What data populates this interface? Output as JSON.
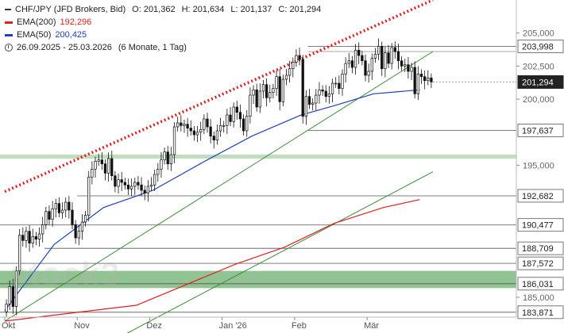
{
  "legend": {
    "symbol": "CHF/JPY (JFD Brokers, Bid)",
    "open": "O: 201,362",
    "high": "H: 201,634",
    "low": "L: 201,137",
    "close": "C: 201,294",
    "ema200_label": "EMA(200)",
    "ema200_value": "192,296",
    "ema50_label": "EMA(50)",
    "ema50_value": "200,425",
    "range": "26.09.2025 - 25.03.2026",
    "period": "(6 Monate, 1 Tag)",
    "ema200_color": "#e02020",
    "ema50_color": "#1f3fbf",
    "clock_icon": "clock-icon"
  },
  "watermark": "stock3",
  "chart_data": {
    "type": "candlestick",
    "y_range": [
      183.5,
      207.5
    ],
    "y_ticks": [
      {
        "value": 185.0,
        "label": "185,000"
      },
      {
        "value": 195.0,
        "label": "195,000"
      },
      {
        "value": 200.0,
        "label": "200,000"
      },
      {
        "value": 202.5,
        "label": "202,500"
      },
      {
        "value": 205.0,
        "label": "205,000"
      }
    ],
    "x_labels": [
      "Okt",
      "Nov",
      "Dez",
      "Jan '26",
      "Feb",
      "Mär"
    ],
    "x_label_days": [
      0,
      22,
      44,
      66,
      88,
      110
    ],
    "x_span_days": 130,
    "price_levels": [
      {
        "value": 203.998,
        "label": "203,998"
      },
      {
        "value": 197.637,
        "label": "197,637"
      },
      {
        "value": 192.682,
        "label": "192,682"
      },
      {
        "value": 190.477,
        "label": "190,477"
      },
      {
        "value": 188.709,
        "label": "188,709"
      },
      {
        "value": 187.572,
        "label": "187,572"
      },
      {
        "value": 186.031,
        "label": "186,031"
      },
      {
        "value": 183.871,
        "label": "183,871"
      }
    ],
    "current_price": {
      "value": 201.294,
      "label": "201,294"
    },
    "support_zones": [
      {
        "from": 185.7,
        "to": 187.0,
        "color": "#86bc86"
      },
      {
        "from": 195.5,
        "to": 195.8,
        "color": "#b7dab7"
      }
    ],
    "ema200": [
      [
        0,
        183.2
      ],
      [
        40,
        184.4
      ],
      [
        70,
        187.5
      ],
      [
        85,
        188.8
      ],
      [
        100,
        190.6
      ],
      [
        115,
        191.8
      ],
      [
        126,
        192.4
      ]
    ],
    "ema50": [
      [
        0,
        184.0
      ],
      [
        15,
        189.0
      ],
      [
        30,
        191.8
      ],
      [
        45,
        193.1
      ],
      [
        60,
        195.2
      ],
      [
        75,
        197.2
      ],
      [
        90,
        198.8
      ],
      [
        100,
        199.5
      ],
      [
        112,
        200.4
      ],
      [
        126,
        200.7
      ]
    ],
    "trendlines": [
      {
        "from": [
          0,
          193.0
        ],
        "to": [
          130,
          207.5
        ],
        "style": "dotted",
        "color": "#e02020"
      },
      {
        "from": [
          0,
          183.2
        ],
        "to": [
          130,
          203.6
        ],
        "style": "solid",
        "color": "#3a8a3a"
      },
      {
        "from": [
          35,
          182.0
        ],
        "to": [
          130,
          194.5
        ],
        "style": "solid",
        "color": "#3a8a3a"
      }
    ],
    "close": [
      184.5,
      185.8,
      184.3,
      187.0,
      189.7,
      189.3,
      190.0,
      189.1,
      189.6,
      189.4,
      189.8,
      190.5,
      191.5,
      190.9,
      191.7,
      192.1,
      191.4,
      191.6,
      192.2,
      191.6,
      190.5,
      189.5,
      190.0,
      190.7,
      191.2,
      194.1,
      194.7,
      195.3,
      195.4,
      195.1,
      194.4,
      195.5,
      194.2,
      193.4,
      193.9,
      193.7,
      193.5,
      193.2,
      193.4,
      193.7,
      193.5,
      193.1,
      192.9,
      193.4,
      193.5,
      194.3,
      194.7,
      195.4,
      196.0,
      195.1,
      195.8,
      197.9,
      198.2,
      198.0,
      198.1,
      197.8,
      197.6,
      197.3,
      197.5,
      197.7,
      198.5,
      197.9,
      197.2,
      196.9,
      197.6,
      198.0,
      198.0,
      198.8,
      198.3,
      199.4,
      199.0,
      198.5,
      197.6,
      198.7,
      200.3,
      200.7,
      199.4,
      200.6,
      201.1,
      200.1,
      200.5,
      200.8,
      201.7,
      199.8,
      201.5,
      201.8,
      202.3,
      202.8,
      203.3,
      203.0,
      198.7,
      200.2,
      199.6,
      199.7,
      200.3,
      200.7,
      200.6,
      200.2,
      200.4,
      201.2,
      201.2,
      200.8,
      201.9,
      202.7,
      202.9,
      202.4,
      203.7,
      203.3,
      202.9,
      201.8,
      202.1,
      203.1,
      203.4,
      204.0,
      202.3,
      203.5,
      202.7,
      203.9,
      203.6,
      202.9,
      202.5,
      202.6,
      202.1,
      202.4,
      200.4,
      201.9,
      201.7,
      201.4,
      201.6,
      201.3
    ]
  }
}
